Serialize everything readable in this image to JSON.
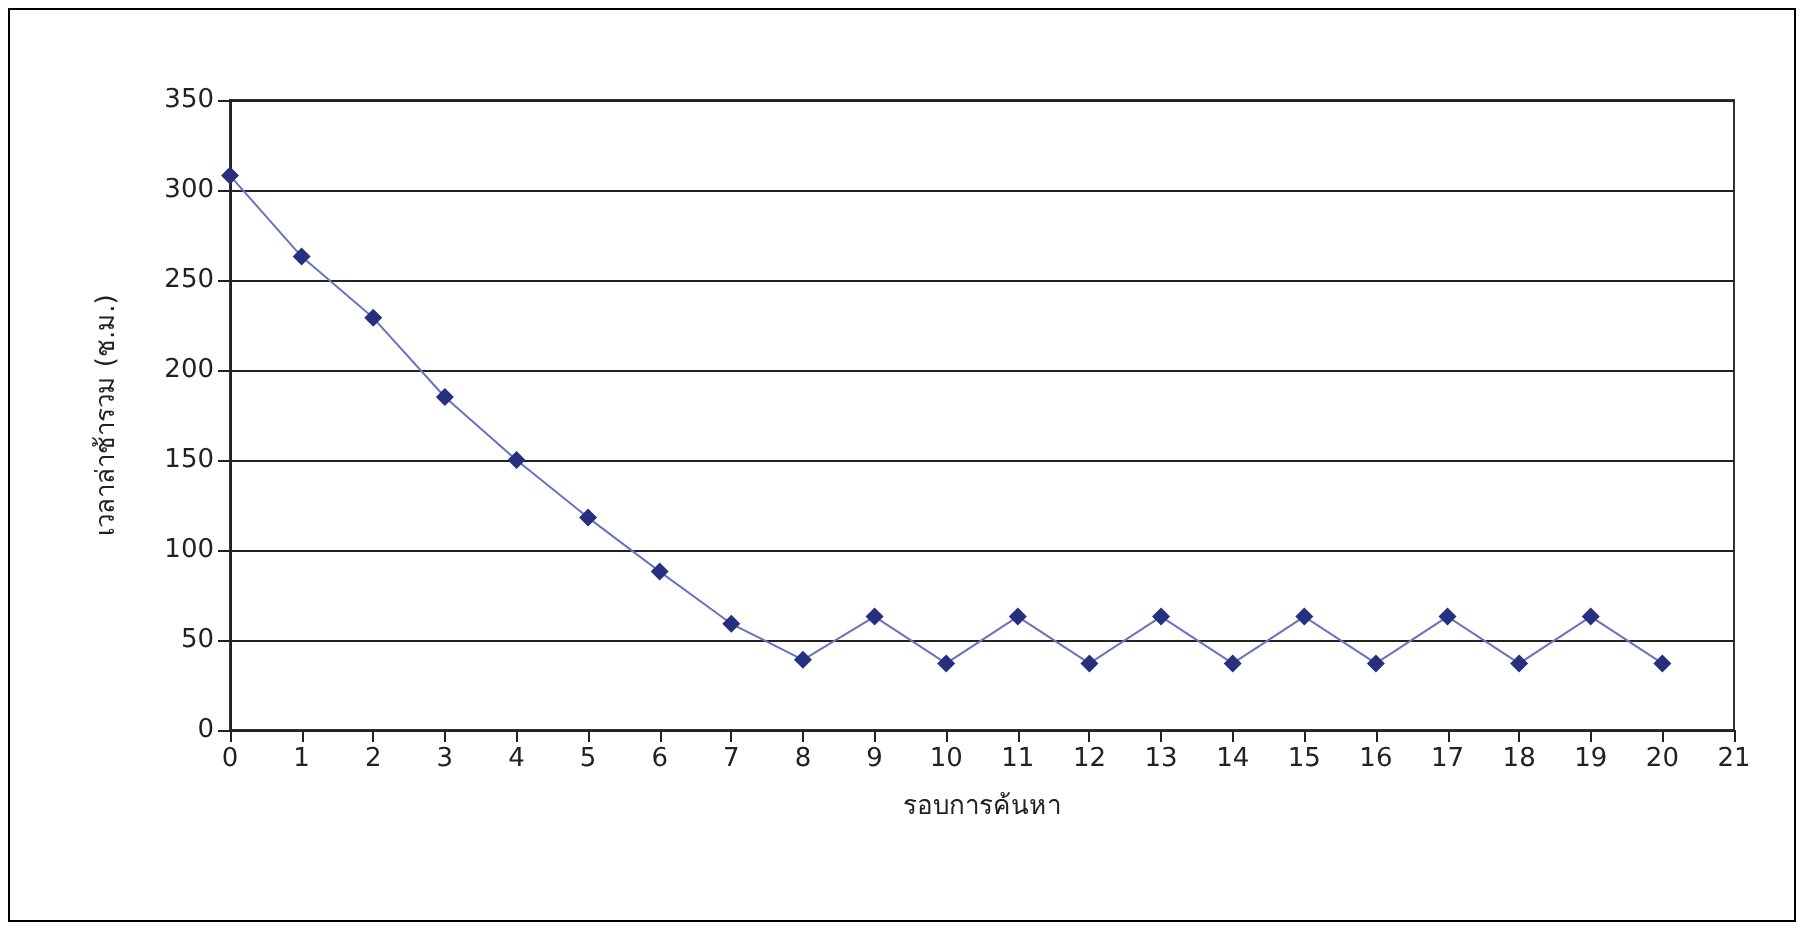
{
  "chart_data": {
    "type": "line",
    "xlabel": "รอบการค้นหา",
    "ylabel": "เวลาล่าช้ารวม (ช.ม.)",
    "x": [
      0,
      1,
      2,
      3,
      4,
      5,
      6,
      7,
      8,
      9,
      10,
      11,
      12,
      13,
      14,
      15,
      16,
      17,
      18,
      19,
      20
    ],
    "series": [
      {
        "color": "#26307f",
        "values": [
          308,
          263,
          229,
          185,
          150,
          118,
          88,
          59,
          39,
          63,
          37,
          63,
          37,
          63,
          37,
          63,
          37,
          63,
          37,
          63,
          37
        ]
      }
    ],
    "xlim": [
      0,
      21
    ],
    "xticks": [
      0,
      1,
      2,
      3,
      4,
      5,
      6,
      7,
      8,
      9,
      10,
      11,
      12,
      13,
      14,
      15,
      16,
      17,
      18,
      19,
      20,
      21
    ],
    "ylim": [
      0,
      350
    ],
    "yticks": [
      0,
      50,
      100,
      150,
      200,
      250,
      300,
      350
    ],
    "grid": "y",
    "marker": "diamond",
    "line_style": "solid"
  }
}
